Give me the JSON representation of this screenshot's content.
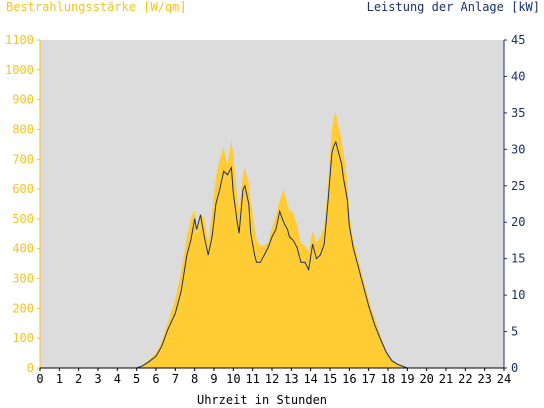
{
  "chart_data": {
    "type": "area",
    "title_left": "Bestrahlungsstärke [W/qm]",
    "title_right": "Leistung der Anlage [kW]",
    "xlabel": "Uhrzeit in Stunden",
    "xlim": [
      0,
      24
    ],
    "ylim_left": [
      0,
      1100
    ],
    "ylim_right": [
      0,
      45
    ],
    "xticks": [
      "0",
      "1",
      "2",
      "3",
      "4",
      "5",
      "6",
      "7",
      "8",
      "9",
      "10",
      "11",
      "12",
      "13",
      "14",
      "15",
      "16",
      "17",
      "18",
      "19",
      "20",
      "21",
      "22",
      "23",
      "24"
    ],
    "yticks_left": [
      "0",
      "100",
      "200",
      "300",
      "400",
      "500",
      "600",
      "700",
      "800",
      "900",
      "1000",
      "1100"
    ],
    "yticks_right": [
      "0",
      "5",
      "10",
      "15",
      "20",
      "25",
      "30",
      "35",
      "40",
      "45"
    ],
    "plot_background": "#dcdcdc",
    "colors": {
      "irradiance": "#ffcc33",
      "power": "#1c2f6e",
      "left_axis": "#f7c31c",
      "right_axis": "#1c2f6e"
    },
    "series": [
      {
        "name": "Bestrahlungsstärke [W/qm]",
        "axis": "left",
        "x": [
          0,
          5,
          5.3,
          5.6,
          6,
          6.3,
          6.6,
          7,
          7.3,
          7.6,
          7.8,
          8.0,
          8.1,
          8.3,
          8.5,
          8.7,
          8.9,
          9.1,
          9.3,
          9.5,
          9.7,
          9.9,
          10.0,
          10.2,
          10.3,
          10.5,
          10.6,
          10.8,
          10.9,
          11.1,
          11.2,
          11.4,
          11.6,
          11.8,
          12.0,
          12.2,
          12.4,
          12.6,
          12.8,
          12.9,
          13.1,
          13.3,
          13.5,
          13.7,
          13.9,
          14.1,
          14.3,
          14.5,
          14.7,
          14.9,
          15.1,
          15.2,
          15.3,
          15.4,
          15.5,
          15.6,
          15.7,
          15.8,
          15.9,
          16.0,
          16.1,
          16.2,
          16.4,
          16.6,
          16.8,
          17.0,
          17.3,
          17.6,
          17.9,
          18.2,
          18.5,
          18.8,
          19.0,
          19.3,
          19.6,
          19.9,
          20.1,
          24
        ],
        "y": [
          0,
          0,
          10,
          25,
          50,
          90,
          150,
          230,
          320,
          440,
          500,
          530,
          450,
          520,
          500,
          420,
          520,
          640,
          700,
          740,
          680,
          760,
          720,
          570,
          530,
          650,
          670,
          620,
          560,
          470,
          430,
          410,
          410,
          420,
          470,
          510,
          560,
          600,
          550,
          530,
          520,
          480,
          420,
          410,
          390,
          460,
          420,
          440,
          470,
          620,
          800,
          840,
          860,
          820,
          800,
          760,
          720,
          680,
          620,
          520,
          470,
          430,
          380,
          330,
          280,
          230,
          170,
          110,
          60,
          25,
          10,
          5,
          0,
          0,
          0,
          0,
          0,
          0
        ]
      },
      {
        "name": "Leistung der Anlage [kW]",
        "axis": "right",
        "x": [
          0,
          5,
          5.3,
          5.6,
          6,
          6.3,
          6.6,
          7,
          7.3,
          7.6,
          7.8,
          8.0,
          8.1,
          8.3,
          8.5,
          8.7,
          8.9,
          9.1,
          9.3,
          9.5,
          9.7,
          9.9,
          10.0,
          10.2,
          10.3,
          10.5,
          10.6,
          10.8,
          10.9,
          11.1,
          11.2,
          11.4,
          11.6,
          11.8,
          12.0,
          12.2,
          12.4,
          12.6,
          12.8,
          12.9,
          13.1,
          13.3,
          13.5,
          13.7,
          13.9,
          14.1,
          14.3,
          14.5,
          14.7,
          14.9,
          15.1,
          15.2,
          15.3,
          15.4,
          15.5,
          15.6,
          15.7,
          15.8,
          15.9,
          16.0,
          16.1,
          16.2,
          16.4,
          16.6,
          16.8,
          17.0,
          17.3,
          17.6,
          17.9,
          18.2,
          18.5,
          18.8,
          19.0,
          19.3,
          19.6,
          19.9,
          20.1,
          24
        ],
        "y": [
          0,
          0,
          0.3,
          0.8,
          1.6,
          3.0,
          5.2,
          7.5,
          10.5,
          15.5,
          17.5,
          20.5,
          19.0,
          21.0,
          18.0,
          15.5,
          18.0,
          22.5,
          24.5,
          27.0,
          26.5,
          27.5,
          24.0,
          20.0,
          18.5,
          24.5,
          25.0,
          22.5,
          18.5,
          15.5,
          14.5,
          14.5,
          15.5,
          16.5,
          18.0,
          19.0,
          21.5,
          20.0,
          19.0,
          18.0,
          17.5,
          16.5,
          14.5,
          14.5,
          13.5,
          17.0,
          15.0,
          15.5,
          17.0,
          23.0,
          29.5,
          30.5,
          31.0,
          30.0,
          29.0,
          28.0,
          26.0,
          24.5,
          23.0,
          19.5,
          18.0,
          16.5,
          14.5,
          12.5,
          10.5,
          8.5,
          6.0,
          4.0,
          2.2,
          1.0,
          0.5,
          0.2,
          0,
          0,
          0,
          0,
          0,
          0
        ]
      }
    ]
  }
}
